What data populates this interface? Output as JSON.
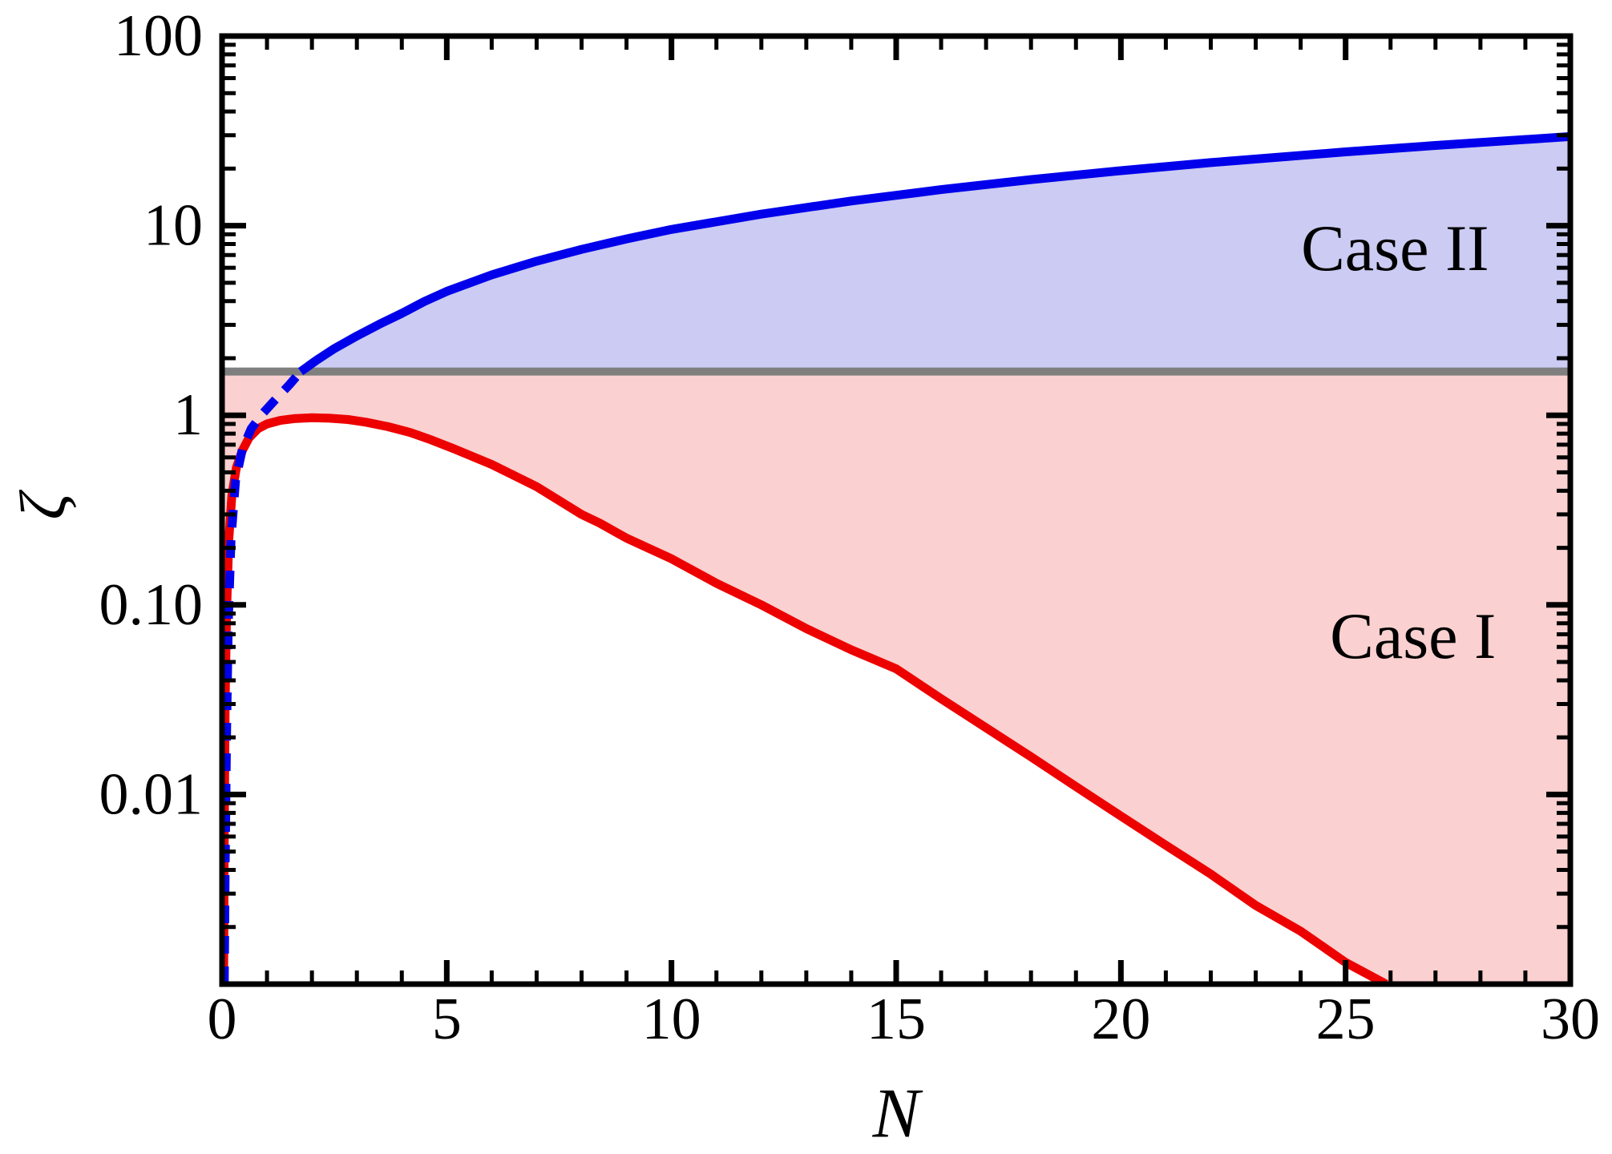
{
  "figure": {
    "background": "#ffffff",
    "frame_color": "#000000"
  },
  "chart_data": {
    "type": "line",
    "title": "",
    "xlabel": "N",
    "ylabel": "ζ",
    "legend": "none",
    "grid": false,
    "x_axis": {
      "scale": "linear",
      "min": 0,
      "max": 30,
      "major_ticks": [
        0,
        5,
        10,
        15,
        20,
        25,
        30
      ],
      "major_tick_labels": [
        "0",
        "5",
        "10",
        "15",
        "20",
        "25",
        "30"
      ],
      "minor_tick_step": 1
    },
    "y_axis": {
      "scale": "log",
      "min": 0.001,
      "max": 100,
      "major_ticks": [
        100,
        10,
        1,
        0.1,
        0.01,
        0.001
      ],
      "labeled_ticks": [
        {
          "value": 100,
          "label": "100"
        },
        {
          "value": 10,
          "label": "10"
        },
        {
          "value": 1,
          "label": "1"
        },
        {
          "value": 0.1,
          "label": "0.10"
        },
        {
          "value": 0.01,
          "label": "0.01"
        }
      ],
      "minor_ticks": "2-9 per decade"
    },
    "threshold_line": {
      "value": 1.7,
      "color": "#7f7f7f",
      "width": 10
    },
    "series": [
      {
        "name": "case-ii-boundary-dashed",
        "color": "#0000eb",
        "style": "dashed",
        "width": 11,
        "points": [
          [
            0.05,
            0.001
          ],
          [
            0.07,
            0.004
          ],
          [
            0.1,
            0.02
          ],
          [
            0.14,
            0.08
          ],
          [
            0.2,
            0.22
          ],
          [
            0.3,
            0.45
          ],
          [
            0.45,
            0.66
          ],
          [
            0.65,
            0.85
          ],
          [
            0.9,
            1.02
          ],
          [
            1.2,
            1.22
          ],
          [
            1.5,
            1.45
          ],
          [
            1.75,
            1.7
          ]
        ]
      },
      {
        "name": "case-ii-boundary-solid",
        "color": "#0000eb",
        "style": "solid",
        "width": 11,
        "points": [
          [
            1.75,
            1.7
          ],
          [
            2.1,
            1.95
          ],
          [
            2.5,
            2.25
          ],
          [
            3.0,
            2.62
          ],
          [
            3.5,
            3.02
          ],
          [
            4.0,
            3.45
          ],
          [
            4.5,
            3.98
          ],
          [
            5.0,
            4.5
          ],
          [
            6.0,
            5.5
          ],
          [
            7.0,
            6.5
          ],
          [
            8.0,
            7.5
          ],
          [
            9.0,
            8.52
          ],
          [
            10.0,
            9.55
          ],
          [
            12.0,
            11.5
          ],
          [
            14.0,
            13.5
          ],
          [
            16.0,
            15.5
          ],
          [
            18.0,
            17.5
          ],
          [
            20.0,
            19.5
          ],
          [
            22.0,
            21.5
          ],
          [
            25.0,
            24.5
          ],
          [
            27.0,
            26.5
          ],
          [
            30.0,
            29.5
          ]
        ]
      },
      {
        "name": "case-i-boundary",
        "color": "#ed0000",
        "style": "solid",
        "width": 11,
        "points": [
          [
            0.035,
            0.001
          ],
          [
            0.05,
            0.006
          ],
          [
            0.07,
            0.03
          ],
          [
            0.1,
            0.09
          ],
          [
            0.15,
            0.22
          ],
          [
            0.22,
            0.38
          ],
          [
            0.32,
            0.53
          ],
          [
            0.45,
            0.65
          ],
          [
            0.6,
            0.76
          ],
          [
            0.8,
            0.85
          ],
          [
            1.0,
            0.9
          ],
          [
            1.3,
            0.94
          ],
          [
            1.6,
            0.96
          ],
          [
            2.0,
            0.97
          ],
          [
            2.4,
            0.965
          ],
          [
            2.8,
            0.95
          ],
          [
            3.2,
            0.92
          ],
          [
            3.7,
            0.87
          ],
          [
            4.2,
            0.81
          ],
          [
            4.6,
            0.75
          ],
          [
            5.2,
            0.66
          ],
          [
            6.0,
            0.55
          ],
          [
            7.0,
            0.42
          ],
          [
            8.0,
            0.3
          ],
          [
            8.4,
            0.27
          ],
          [
            9.0,
            0.225
          ],
          [
            10.0,
            0.175
          ],
          [
            11.0,
            0.13
          ],
          [
            12.0,
            0.1
          ],
          [
            13.0,
            0.075
          ],
          [
            14.0,
            0.058
          ],
          [
            15.0,
            0.046
          ],
          [
            16.0,
            0.032
          ],
          [
            17.0,
            0.0225
          ],
          [
            18.0,
            0.0158
          ],
          [
            19.0,
            0.011
          ],
          [
            20.0,
            0.0077
          ],
          [
            21.0,
            0.0054
          ],
          [
            22.0,
            0.0038
          ],
          [
            23.0,
            0.0026
          ],
          [
            24.0,
            0.0019
          ],
          [
            25.0,
            0.0013
          ],
          [
            25.9,
            0.001
          ]
        ]
      }
    ],
    "regions": [
      {
        "name": "case-ii-fill",
        "label": "Case II",
        "fill": "#cbcbf3",
        "between": "case-ii-boundary-solid and threshold line"
      },
      {
        "name": "case-i-fill",
        "label": "Case I",
        "fill": "#fad0d0",
        "between": "threshold line and case-i-boundary (to plot bottom right of its exit)"
      }
    ],
    "annotations": [
      {
        "text": "Case II",
        "n": 26.1,
        "zeta": 7.6
      },
      {
        "text": "Case I",
        "n": 26.5,
        "zeta": 0.068
      }
    ]
  }
}
